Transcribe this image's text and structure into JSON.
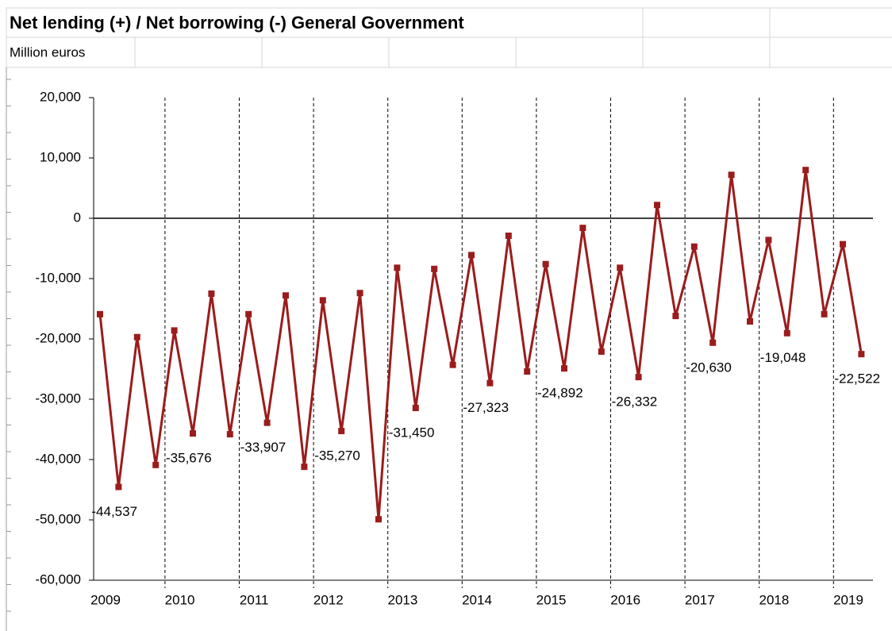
{
  "chart_data": {
    "type": "line",
    "title": "Net lending (+) / Net borrowing (-) General Government",
    "subtitle": "Million euros",
    "categories": [
      "2009",
      null,
      null,
      null,
      "2010",
      null,
      null,
      null,
      "2011",
      null,
      null,
      null,
      "2012",
      null,
      null,
      null,
      "2013",
      null,
      null,
      null,
      "2014",
      null,
      null,
      null,
      "2015",
      null,
      null,
      null,
      "2016",
      null,
      null,
      null,
      "2017",
      null,
      null,
      null,
      "2018",
      null,
      null,
      null,
      "2019",
      null
    ],
    "series": [
      {
        "name": "Net lending (+) / Net borrowing (-)",
        "color": "#9b1c1c",
        "values": [
          -15900,
          -44537,
          -19700,
          -40900,
          -18600,
          -35676,
          -12500,
          -35800,
          -15900,
          -33907,
          -12800,
          -41200,
          -13600,
          -35270,
          -12400,
          -49900,
          -8200,
          -31450,
          -8400,
          -24300,
          -6100,
          -27323,
          -2900,
          -25400,
          -7600,
          -24892,
          -1600,
          -22100,
          -8200,
          -26332,
          2200,
          -16200,
          -4700,
          -20630,
          7200,
          -17100,
          -3600,
          -19048,
          8000,
          -15900,
          -4300,
          -22522
        ],
        "value_labels": [
          null,
          "-44,537",
          null,
          null,
          null,
          "-35,676",
          null,
          null,
          null,
          "-33,907",
          null,
          null,
          null,
          "-35,270",
          null,
          null,
          null,
          "-31,450",
          null,
          null,
          null,
          "-27,323",
          null,
          null,
          null,
          "-24,892",
          null,
          null,
          null,
          "-26,332",
          null,
          null,
          null,
          "-20,630",
          null,
          null,
          null,
          "-19,048",
          null,
          null,
          null,
          "-22,522"
        ]
      }
    ],
    "ylim": [
      -60000,
      20000
    ],
    "yticks": [
      {
        "value": 20000,
        "label": "20,000"
      },
      {
        "value": 10000,
        "label": "10,000"
      },
      0,
      {
        "value": -10000,
        "label": "-10,000"
      },
      {
        "value": -20000,
        "label": "-20,000"
      },
      {
        "value": -30000,
        "label": "-30,000"
      },
      {
        "value": -40000,
        "label": "-40,000"
      },
      {
        "value": -50000,
        "label": "-50,000"
      },
      {
        "value": -60000,
        "label": "-60,000"
      }
    ]
  }
}
